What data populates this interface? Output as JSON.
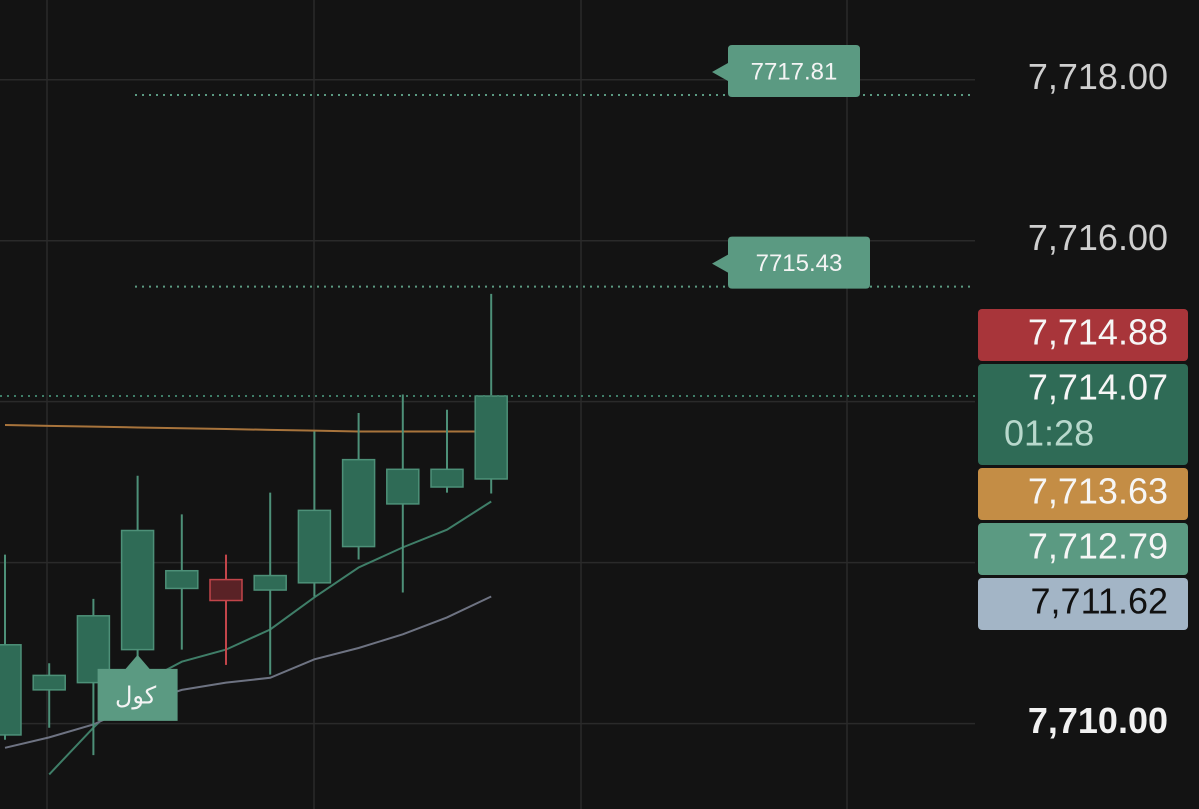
{
  "chart_data": {
    "type": "candlestick",
    "categories": [
      null,
      null,
      null,
      null,
      null,
      null,
      null,
      null,
      null,
      null,
      null,
      null
    ],
    "open": [
      7709.86,
      7710.42,
      7710.51,
      7710.92,
      7711.68,
      7711.79,
      7711.66,
      7711.75,
      7712.2,
      7712.73,
      7712.94,
      7713.04
    ],
    "high": [
      7712.1,
      7710.75,
      7711.55,
      7713.08,
      7712.6,
      7712.1,
      7712.87,
      7713.63,
      7713.86,
      7714.09,
      7713.9,
      7715.34
    ],
    "low": [
      7709.8,
      7709.95,
      7709.61,
      7710.73,
      7710.92,
      7710.73,
      7710.61,
      7711.58,
      7712.04,
      7711.63,
      7712.87,
      7712.86
    ],
    "close": [
      7710.98,
      7710.6,
      7711.34,
      7712.4,
      7711.9,
      7711.53,
      7711.84,
      7712.65,
      7713.28,
      7713.16,
      7713.16,
      7714.07
    ],
    "up_color": "#2f6b56",
    "down_color": "#5a2226",
    "series": [
      {
        "color": "#a8743c",
        "values": [
          7713.71,
          7713.7,
          7713.69,
          7713.68,
          7713.67,
          7713.66,
          7713.65,
          7713.64,
          7713.63,
          7713.63,
          7713.63,
          7713.63
        ]
      },
      {
        "color": "#3f7e68",
        "values": [
          null,
          7709.37,
          7709.95,
          7710.48,
          7710.77,
          7710.92,
          7711.17,
          7711.57,
          7711.94,
          7712.19,
          7712.41,
          7712.76
        ]
      },
      {
        "color": "#6e7382",
        "values": [
          7709.7,
          7709.83,
          7709.99,
          7710.24,
          7710.42,
          7710.51,
          7710.57,
          7710.8,
          7710.94,
          7711.11,
          7711.32,
          7711.58
        ]
      }
    ],
    "ylim": [
      7708.94,
      7718.99
    ],
    "yticks": [
      {
        "value": 7718,
        "label": "7,718.00"
      },
      {
        "value": 7716,
        "label": "7,716.00"
      },
      {
        "value": 7710,
        "label": "7,710.00"
      }
    ],
    "ygrid": [
      7710,
      7712,
      7714,
      7716,
      7718
    ],
    "price_lines": [
      {
        "value": 7717.81,
        "color": "#5b9a82"
      },
      {
        "value": 7715.43,
        "color": "#5b9a82"
      }
    ],
    "price_badges": [
      {
        "label": "7,714.88",
        "color": "#a8353a"
      },
      {
        "label": "7,714.07",
        "sublabel": "01:28",
        "color": "#2f6b56"
      },
      {
        "label": "7,713.63",
        "color": "#c48d45"
      },
      {
        "label": "7,712.79",
        "color": "#5b9a82"
      },
      {
        "label": "7,711.62",
        "color": "#a3b5c6"
      }
    ],
    "annotation": "كول"
  }
}
